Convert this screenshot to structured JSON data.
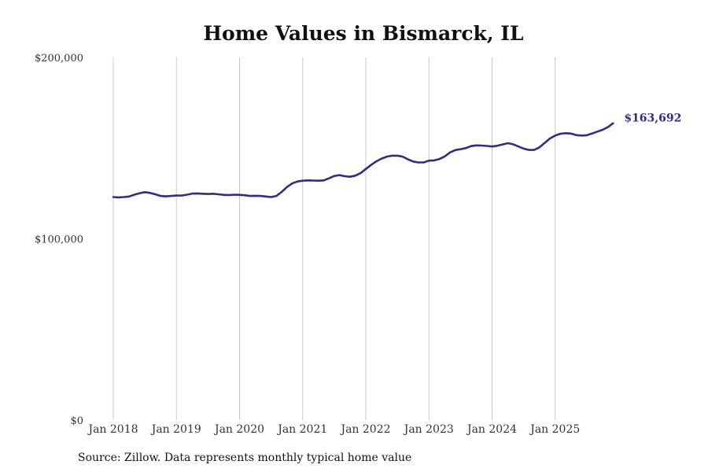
{
  "chart_data": {
    "type": "line",
    "title": "Home Values in Bismarck, IL",
    "source": "Source: Zillow. Data represents monthly typical home value",
    "xlabel": "",
    "ylabel": "",
    "ylim": [
      0,
      200000
    ],
    "xlim": [
      2018.0,
      2026.0
    ],
    "yticks": [
      {
        "value": 0,
        "label": "$0"
      },
      {
        "value": 100000,
        "label": "$100,000"
      },
      {
        "value": 200000,
        "label": "$200,000"
      }
    ],
    "xticks": [
      {
        "value": 2018,
        "label": "Jan 2018"
      },
      {
        "value": 2019,
        "label": "Jan 2019"
      },
      {
        "value": 2020,
        "label": "Jan 2020"
      },
      {
        "value": 2021,
        "label": "Jan 2021"
      },
      {
        "value": 2022,
        "label": "Jan 2022"
      },
      {
        "value": 2023,
        "label": "Jan 2023"
      },
      {
        "value": 2024,
        "label": "Jan 2024"
      },
      {
        "value": 2025,
        "label": "Jan 2025"
      }
    ],
    "grid": {
      "vertical": true,
      "horizontal": false
    },
    "series": [
      {
        "name": "Typical home value",
        "color": "#332b8a",
        "end_label": "$163,692",
        "x": [
          2018.0,
          2018.083,
          2018.167,
          2018.25,
          2018.333,
          2018.417,
          2018.5,
          2018.583,
          2018.667,
          2018.75,
          2018.833,
          2018.917,
          2019.0,
          2019.083,
          2019.167,
          2019.25,
          2019.333,
          2019.417,
          2019.5,
          2019.583,
          2019.667,
          2019.75,
          2019.833,
          2019.917,
          2020.0,
          2020.083,
          2020.167,
          2020.25,
          2020.333,
          2020.417,
          2020.5,
          2020.583,
          2020.667,
          2020.75,
          2020.833,
          2020.917,
          2021.0,
          2021.083,
          2021.167,
          2021.25,
          2021.333,
          2021.417,
          2021.5,
          2021.583,
          2021.667,
          2021.75,
          2021.833,
          2021.917,
          2022.0,
          2022.083,
          2022.167,
          2022.25,
          2022.333,
          2022.417,
          2022.5,
          2022.583,
          2022.667,
          2022.75,
          2022.833,
          2022.917,
          2023.0,
          2023.083,
          2023.167,
          2023.25,
          2023.333,
          2023.417,
          2023.5,
          2023.583,
          2023.667,
          2023.75,
          2023.833,
          2023.917,
          2024.0,
          2024.083,
          2024.167,
          2024.25,
          2024.333,
          2024.417,
          2024.5,
          2024.583,
          2024.667,
          2024.75,
          2024.833,
          2024.917,
          2025.0,
          2025.083,
          2025.167,
          2025.25,
          2025.333,
          2025.417,
          2025.5,
          2025.583,
          2025.667,
          2025.75,
          2025.833,
          2025.917
        ],
        "values": [
          123000,
          122800,
          123000,
          123300,
          124300,
          125100,
          125700,
          125300,
          124500,
          123600,
          123400,
          123600,
          123800,
          123800,
          124300,
          124900,
          125000,
          124800,
          124700,
          124800,
          124500,
          124200,
          124100,
          124300,
          124200,
          124000,
          123600,
          123700,
          123600,
          123300,
          123000,
          123600,
          125800,
          128500,
          130500,
          131600,
          132000,
          132200,
          132100,
          132000,
          132200,
          133300,
          134600,
          135100,
          134500,
          134200,
          134800,
          136200,
          138500,
          140700,
          142700,
          144200,
          145300,
          145800,
          145800,
          145300,
          143800,
          142600,
          142100,
          142100,
          143100,
          143200,
          144000,
          145400,
          147600,
          148900,
          149400,
          150000,
          151100,
          151500,
          151400,
          151200,
          150900,
          151300,
          152000,
          152700,
          152100,
          150900,
          149700,
          149000,
          149000,
          150400,
          152800,
          155300,
          156900,
          157900,
          158200,
          158000,
          157200,
          156900,
          157100,
          158000,
          159100,
          160100,
          161500,
          163692
        ]
      }
    ]
  }
}
